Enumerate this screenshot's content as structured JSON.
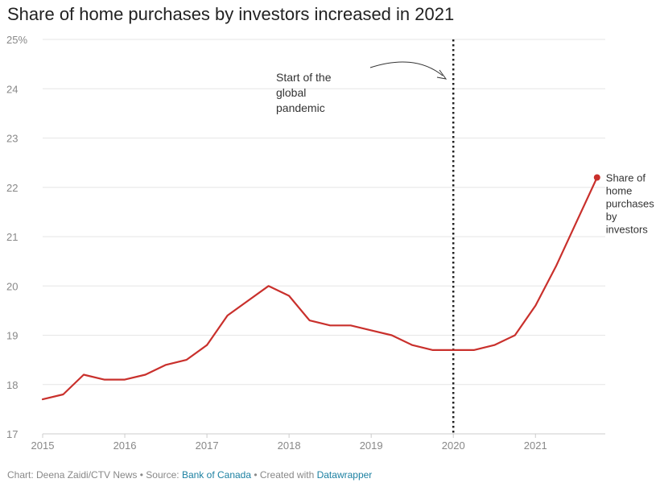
{
  "title": "Share of home purchases by investors increased in 2021",
  "footer": {
    "chart_by": "Chart: Deena Zaidi/CTV News",
    "sep1": " • Source: ",
    "source": "Bank of Canada",
    "sep2": " • Created with ",
    "tool": "Datawrapper"
  },
  "annotation": {
    "lines": [
      "Start of the",
      "global",
      "pandemic"
    ]
  },
  "colors": {
    "series": "#c9302c",
    "grid": "#e6e6e6",
    "axis": "#cccccc",
    "marker_line": "#222222"
  },
  "chart_data": {
    "type": "line",
    "title": "Share of home purchases by investors increased in 2021",
    "xlabel": "",
    "ylabel": "",
    "xlim": [
      2015,
      2021.85
    ],
    "ylim": [
      17,
      25
    ],
    "y_ticks": [
      {
        "value": 17,
        "label": "17"
      },
      {
        "value": 18,
        "label": "18"
      },
      {
        "value": 19,
        "label": "19"
      },
      {
        "value": 20,
        "label": "20"
      },
      {
        "value": 21,
        "label": "21"
      },
      {
        "value": 22,
        "label": "22"
      },
      {
        "value": 23,
        "label": "23"
      },
      {
        "value": 24,
        "label": "24"
      },
      {
        "value": 25,
        "label": "25%"
      }
    ],
    "x_ticks": [
      {
        "value": 2015,
        "label": "2015"
      },
      {
        "value": 2016,
        "label": "2016"
      },
      {
        "value": 2017,
        "label": "2017"
      },
      {
        "value": 2018,
        "label": "2018"
      },
      {
        "value": 2019,
        "label": "2019"
      },
      {
        "value": 2020,
        "label": "2020"
      },
      {
        "value": 2021,
        "label": "2021"
      }
    ],
    "grid": true,
    "vertical_marker": {
      "x": 2020.0,
      "style": "dotted"
    },
    "series": [
      {
        "name": "Share of home purchases by investors",
        "label_lines": [
          "Share of",
          "home",
          "purchases",
          "by",
          "investors"
        ],
        "points": [
          {
            "x": 2015.0,
            "y": 17.7
          },
          {
            "x": 2015.25,
            "y": 17.8
          },
          {
            "x": 2015.5,
            "y": 18.2
          },
          {
            "x": 2015.75,
            "y": 18.1
          },
          {
            "x": 2016.0,
            "y": 18.1
          },
          {
            "x": 2016.25,
            "y": 18.2
          },
          {
            "x": 2016.5,
            "y": 18.4
          },
          {
            "x": 2016.75,
            "y": 18.5
          },
          {
            "x": 2017.0,
            "y": 18.8
          },
          {
            "x": 2017.25,
            "y": 19.4
          },
          {
            "x": 2017.5,
            "y": 19.7
          },
          {
            "x": 2017.75,
            "y": 20.0
          },
          {
            "x": 2018.0,
            "y": 19.8
          },
          {
            "x": 2018.25,
            "y": 19.3
          },
          {
            "x": 2018.5,
            "y": 19.2
          },
          {
            "x": 2018.75,
            "y": 19.2
          },
          {
            "x": 2019.0,
            "y": 19.1
          },
          {
            "x": 2019.25,
            "y": 19.0
          },
          {
            "x": 2019.5,
            "y": 18.8
          },
          {
            "x": 2019.75,
            "y": 18.7
          },
          {
            "x": 2020.0,
            "y": 18.7
          },
          {
            "x": 2020.25,
            "y": 18.7
          },
          {
            "x": 2020.5,
            "y": 18.8
          },
          {
            "x": 2020.75,
            "y": 19.0
          },
          {
            "x": 2021.0,
            "y": 19.6
          },
          {
            "x": 2021.25,
            "y": 20.4
          },
          {
            "x": 2021.5,
            "y": 21.3
          },
          {
            "x": 2021.75,
            "y": 22.2
          }
        ]
      }
    ]
  }
}
